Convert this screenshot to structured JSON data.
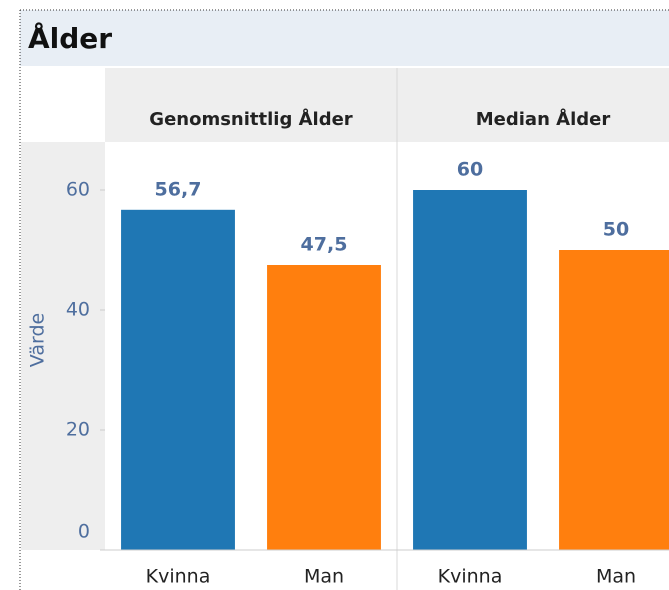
{
  "chart_data": {
    "type": "bar",
    "title": "Ålder",
    "y_label": "Värde",
    "ylim": [
      0,
      68
    ],
    "yticks": [
      0,
      20,
      40,
      60
    ],
    "colors": [
      "#1f77b4",
      "#ff7f0e"
    ],
    "panels": [
      {
        "title": "Genomsnittlig Ålder",
        "categories": [
          "Kvinna",
          "Man"
        ],
        "values": [
          56.7,
          47.5
        ],
        "value_labels": [
          "56,7",
          "47,5"
        ]
      },
      {
        "title": "Median Ålder",
        "categories": [
          "Kvinna",
          "Man"
        ],
        "values": [
          60,
          50
        ],
        "value_labels": [
          "60",
          "50"
        ]
      }
    ]
  }
}
